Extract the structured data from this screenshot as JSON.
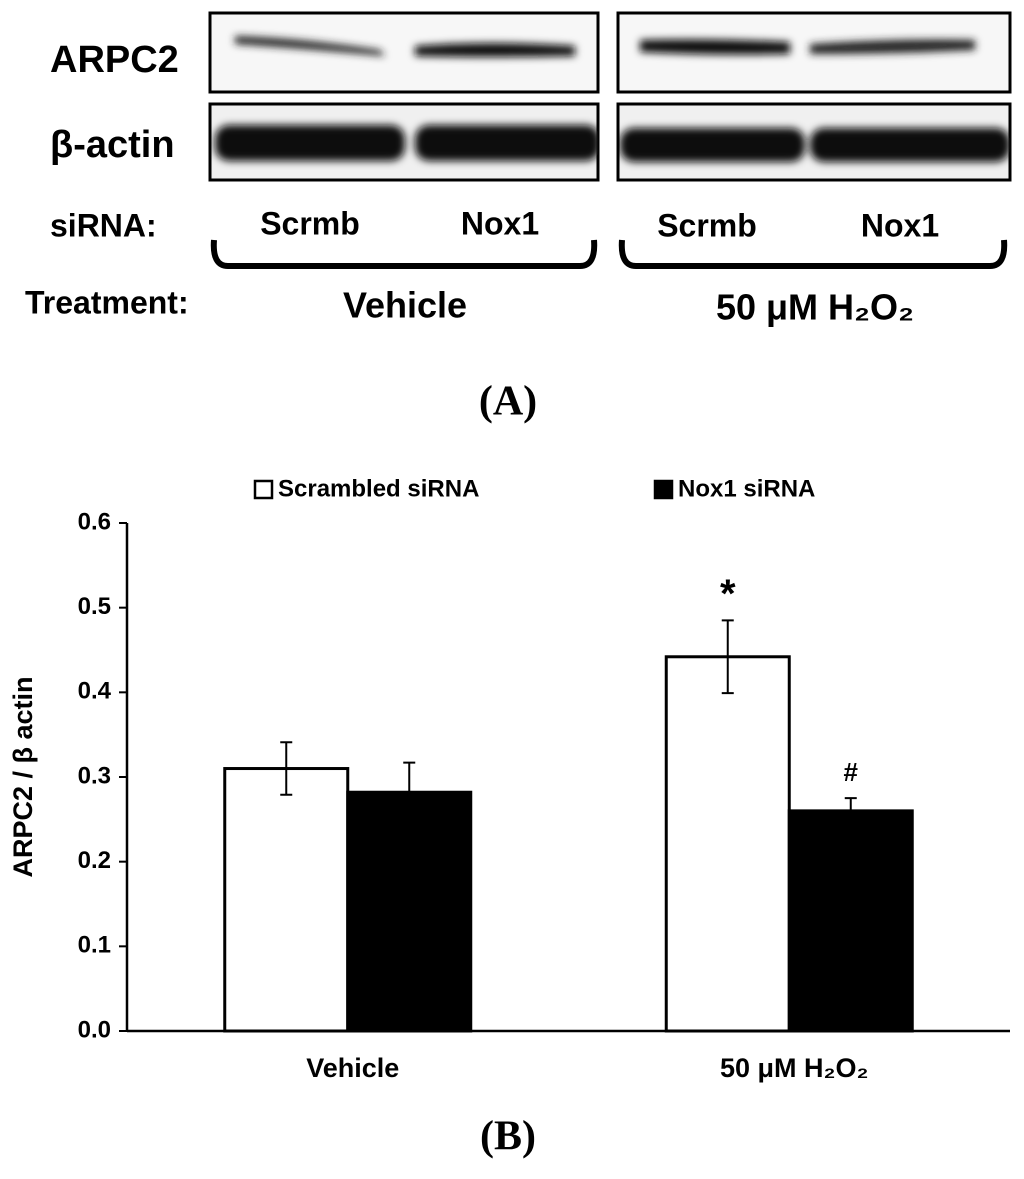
{
  "panel_a": {
    "rows": [
      "ARPC2",
      "β-actin"
    ],
    "sirna_label": "siRNA:",
    "lanes": [
      "Scrmb",
      "Nox1",
      "Scrmb",
      "Nox1"
    ],
    "treatment_label": "Treatment:",
    "treatments": [
      "Vehicle",
      "50 μM H₂O₂"
    ],
    "panel_label": "(A)"
  },
  "chart_data": {
    "type": "bar",
    "panel_label": "(B)",
    "y_label": "ARPC2 / β actin",
    "categories": [
      "Vehicle",
      "50 μM H₂O₂"
    ],
    "series": [
      {
        "name": "Scrambled siRNA",
        "color": "#ffffff",
        "values": [
          0.31,
          0.442
        ],
        "errors": [
          0.031,
          0.043
        ],
        "annotations": [
          null,
          "*"
        ]
      },
      {
        "name": "Nox1 siRNA",
        "color": "#000000",
        "values": [
          0.282,
          0.26
        ],
        "errors": [
          0.035,
          0.015
        ],
        "annotations": [
          null,
          "#"
        ]
      }
    ],
    "ylim": [
      0,
      0.6
    ],
    "yticks": [
      {
        "value": 0,
        "label": "0.0"
      },
      0.1,
      0.2,
      0.3,
      0.4,
      0.5,
      0.6
    ],
    "legend": "top",
    "grid": false
  }
}
